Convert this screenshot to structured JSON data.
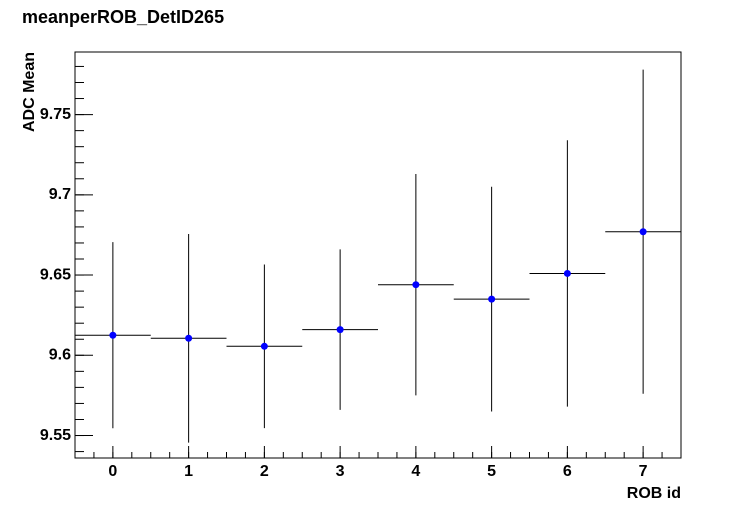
{
  "chart_data": {
    "type": "errorbar",
    "title": "meanperROB_DetID265",
    "x_label": "ROB id",
    "y_label": "ADC Mean",
    "x": [
      0,
      1,
      2,
      3,
      4,
      5,
      6,
      7
    ],
    "values": [
      9.6125,
      9.6106,
      9.6056,
      9.616,
      9.644,
      9.635,
      9.651,
      9.677
    ],
    "errors": [
      0.058,
      0.065,
      0.051,
      0.05,
      0.069,
      0.07,
      0.083,
      0.101
    ],
    "color": "#0000ff",
    "xlim": [
      -0.5,
      7.5
    ],
    "xticks": [
      0,
      1,
      2,
      3,
      4,
      5,
      6,
      7
    ],
    "ylim": [
      9.536,
      9.789
    ],
    "yticks": [
      9.55,
      9.6,
      9.65,
      9.7,
      9.75
    ]
  }
}
